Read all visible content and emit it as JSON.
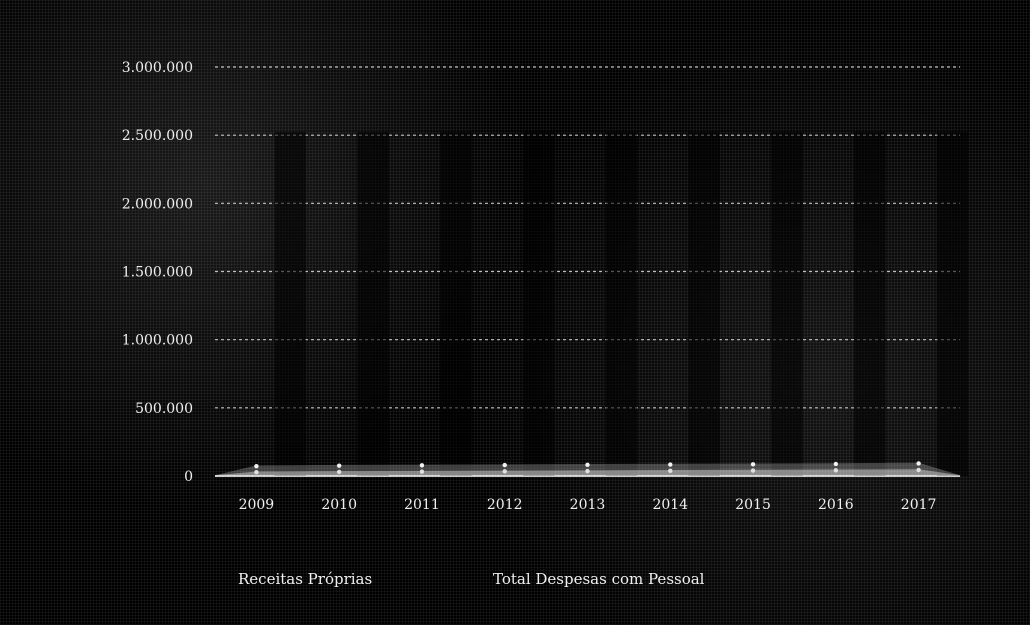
{
  "chart_data": {
    "type": "area",
    "title": "",
    "xlabel": "",
    "ylabel": "",
    "categories": [
      "2009",
      "2010",
      "2011",
      "2012",
      "2013",
      "2014",
      "2015",
      "2016",
      "2017"
    ],
    "ylim": [
      0,
      3000000
    ],
    "yticks": [
      "0",
      "500.000",
      "1.000.000",
      "1.500.000",
      "2.000.000",
      "2.500.000",
      "3.000.000"
    ],
    "series": [
      {
        "name": "Receitas Próprias",
        "values": [
          28000,
          30000,
          32000,
          34000,
          36000,
          38000,
          40000,
          42000,
          44000
        ],
        "color": "#d9d9d9"
      },
      {
        "name": "Total Despesas com Pessoal",
        "values": [
          72000,
          76000,
          78000,
          80000,
          82000,
          84000,
          86000,
          88000,
          92000
        ],
        "color": "#f2f2f2"
      }
    ],
    "grid": true,
    "legend_placement": "bottom"
  }
}
